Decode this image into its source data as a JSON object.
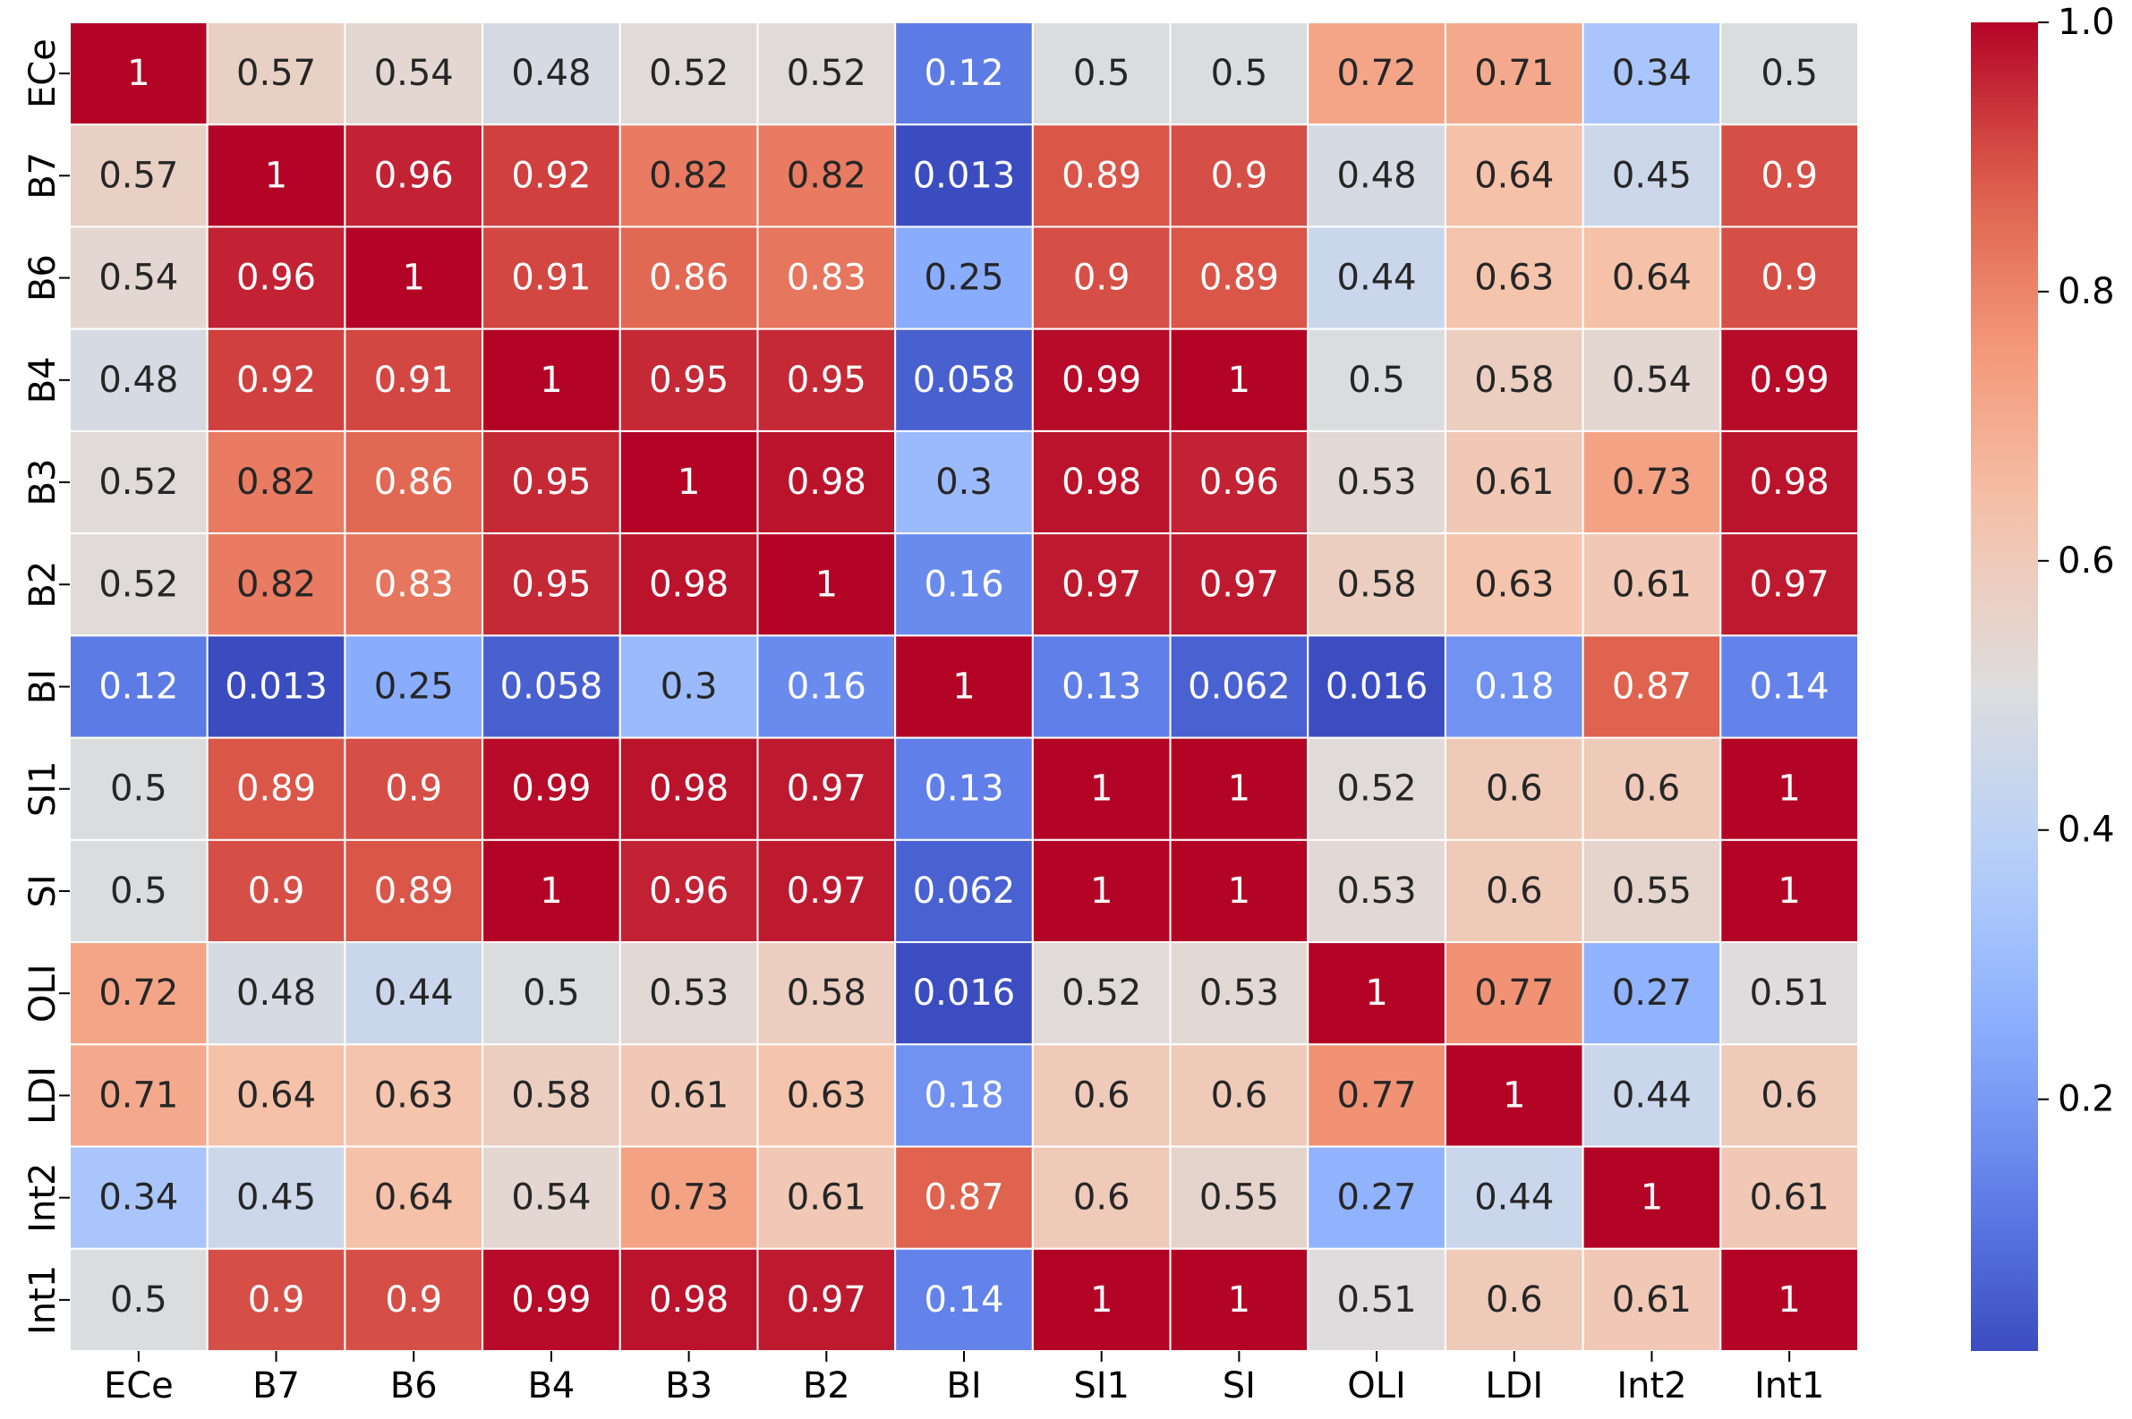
{
  "chart_data": {
    "type": "heatmap",
    "title": "",
    "xlabel": "",
    "ylabel": "",
    "x_labels": [
      "ECe",
      "B7",
      "B6",
      "B4",
      "B3",
      "B2",
      "BI",
      "SI1",
      "SI",
      "OLI",
      "LDI",
      "Int2",
      "Int1"
    ],
    "y_labels": [
      "ECe",
      "B7",
      "B6",
      "B4",
      "B3",
      "B2",
      "BI",
      "SI1",
      "SI",
      "OLI",
      "LDI",
      "Int2",
      "Int1"
    ],
    "cell_labels": [
      [
        "1",
        "0.57",
        "0.54",
        "0.48",
        "0.52",
        "0.52",
        "0.12",
        "0.5",
        "0.5",
        "0.72",
        "0.71",
        "0.34",
        "0.5"
      ],
      [
        "0.57",
        "1",
        "0.96",
        "0.92",
        "0.82",
        "0.82",
        "0.013",
        "0.89",
        "0.9",
        "0.48",
        "0.64",
        "0.45",
        "0.9"
      ],
      [
        "0.54",
        "0.96",
        "1",
        "0.91",
        "0.86",
        "0.83",
        "0.25",
        "0.9",
        "0.89",
        "0.44",
        "0.63",
        "0.64",
        "0.9"
      ],
      [
        "0.48",
        "0.92",
        "0.91",
        "1",
        "0.95",
        "0.95",
        "0.058",
        "0.99",
        "1",
        "0.5",
        "0.58",
        "0.54",
        "0.99"
      ],
      [
        "0.52",
        "0.82",
        "0.86",
        "0.95",
        "1",
        "0.98",
        "0.3",
        "0.98",
        "0.96",
        "0.53",
        "0.61",
        "0.73",
        "0.98"
      ],
      [
        "0.52",
        "0.82",
        "0.83",
        "0.95",
        "0.98",
        "1",
        "0.16",
        "0.97",
        "0.97",
        "0.58",
        "0.63",
        "0.61",
        "0.97"
      ],
      [
        "0.12",
        "0.013",
        "0.25",
        "0.058",
        "0.3",
        "0.16",
        "1",
        "0.13",
        "0.062",
        "0.016",
        "0.18",
        "0.87",
        "0.14"
      ],
      [
        "0.5",
        "0.89",
        "0.9",
        "0.99",
        "0.98",
        "0.97",
        "0.13",
        "1",
        "1",
        "0.52",
        "0.6",
        "0.6",
        "1"
      ],
      [
        "0.5",
        "0.9",
        "0.89",
        "1",
        "0.96",
        "0.97",
        "0.062",
        "1",
        "1",
        "0.53",
        "0.6",
        "0.55",
        "1"
      ],
      [
        "0.72",
        "0.48",
        "0.44",
        "0.5",
        "0.53",
        "0.58",
        "0.016",
        "0.52",
        "0.53",
        "1",
        "0.77",
        "0.27",
        "0.51"
      ],
      [
        "0.71",
        "0.64",
        "0.63",
        "0.58",
        "0.61",
        "0.63",
        "0.18",
        "0.6",
        "0.6",
        "0.77",
        "1",
        "0.44",
        "0.6"
      ],
      [
        "0.34",
        "0.45",
        "0.64",
        "0.54",
        "0.73",
        "0.61",
        "0.87",
        "0.6",
        "0.55",
        "0.27",
        "0.44",
        "1",
        "0.61"
      ],
      [
        "0.5",
        "0.9",
        "0.9",
        "0.99",
        "0.98",
        "0.97",
        "0.14",
        "1",
        "1",
        "0.51",
        "0.6",
        "0.61",
        "1"
      ]
    ],
    "colorbar": {
      "colormap": "coolwarm",
      "min": 0.013,
      "max": 1.0,
      "ticks": [
        0.2,
        0.4,
        0.6,
        0.8,
        1.0
      ],
      "tick_labels": [
        "0.2",
        "0.4",
        "0.6",
        "0.8",
        "1.0"
      ]
    },
    "grid_lines": "white"
  }
}
